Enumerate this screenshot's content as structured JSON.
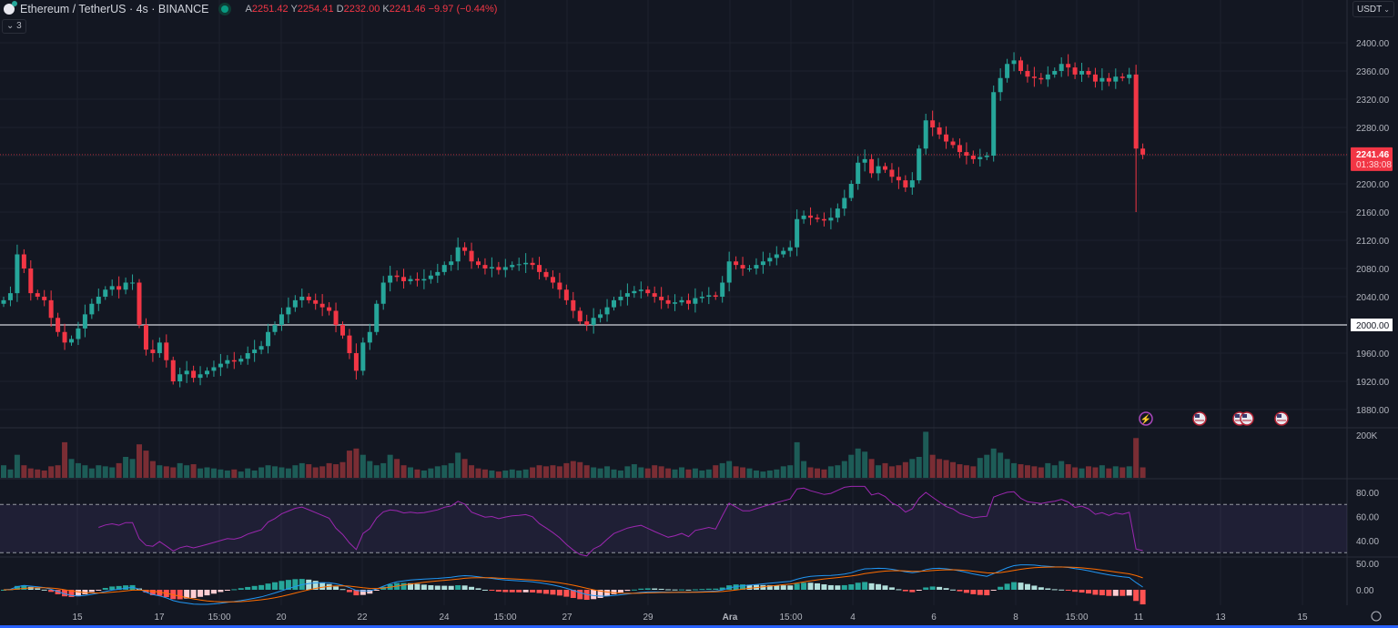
{
  "header": {
    "title": "Ethereum / TetherUS · 4s · BINANCE",
    "open_label": "A",
    "open": "2251.42",
    "high_label": "Y",
    "high": "2254.41",
    "low_label": "D",
    "low": "2232.00",
    "close_label": "K",
    "close": "2241.46",
    "change": "−9.97 (−0.44%)",
    "collapse_label": "3"
  },
  "currency_select": "USDT",
  "price_badge": {
    "price": "2241.46",
    "countdown": "01:38:08",
    "color": "#f23645"
  },
  "level_badge": "2000.00",
  "colors": {
    "up": "#26a69a",
    "down": "#f23645",
    "rsi": "#9c27b0",
    "macd": "#2196f3",
    "signal": "#ff6d00",
    "background": "#131722"
  },
  "events": [
    {
      "icon": "lightning-icon"
    },
    {
      "icon": "us-flag-icon"
    },
    {
      "icon": "us-flag-icon"
    },
    {
      "icon": "us-flag-icon"
    },
    {
      "icon": "us-flag-icon"
    }
  ],
  "chart_data": {
    "type": "candlestick",
    "price_axis_ticks": [
      "2400.00",
      "2360.00",
      "2320.00",
      "2280.00",
      "2200.00",
      "2160.00",
      "2120.00",
      "2080.00",
      "2040.00",
      "1960.00",
      "1920.00",
      "1880.00"
    ],
    "ylim": [
      1880,
      2400
    ],
    "horizontal_line": 2000,
    "last_price": 2241.46,
    "time_axis_ticks": [
      "15",
      "17",
      "15:00",
      "20",
      "22",
      "24",
      "15:00",
      "27",
      "29",
      "Ara",
      "15:00",
      "4",
      "6",
      "8",
      "15:00",
      "11",
      "13",
      "15"
    ],
    "close": [
      2035,
      2045,
      2100,
      2080,
      2045,
      2040,
      2035,
      2010,
      1990,
      1975,
      1980,
      1995,
      2015,
      2030,
      2040,
      2050,
      2055,
      2050,
      2060,
      2060,
      2000,
      1965,
      1960,
      1975,
      1950,
      1920,
      1930,
      1935,
      1925,
      1930,
      1935,
      1940,
      1945,
      1950,
      1948,
      1952,
      1960,
      1965,
      1970,
      1990,
      2000,
      2015,
      2025,
      2035,
      2040,
      2035,
      2030,
      2025,
      2020,
      2000,
      1985,
      1960,
      1935,
      1975,
      1990,
      2030,
      2060,
      2070,
      2068,
      2062,
      2065,
      2063,
      2065,
      2070,
      2075,
      2085,
      2090,
      2110,
      2105,
      2090,
      2085,
      2080,
      2082,
      2078,
      2082,
      2085,
      2086,
      2088,
      2085,
      2075,
      2068,
      2060,
      2050,
      2035,
      2020,
      2005,
      2000,
      2010,
      2015,
      2025,
      2035,
      2040,
      2045,
      2048,
      2050,
      2045,
      2040,
      2035,
      2030,
      2032,
      2035,
      2030,
      2038,
      2040,
      2042,
      2040,
      2060,
      2090,
      2085,
      2080,
      2080,
      2085,
      2090,
      2095,
      2100,
      2105,
      2110,
      2150,
      2155,
      2152,
      2150,
      2148,
      2152,
      2165,
      2180,
      2200,
      2230,
      2235,
      2215,
      2225,
      2220,
      2210,
      2205,
      2195,
      2205,
      2250,
      2290,
      2280,
      2270,
      2260,
      2255,
      2245,
      2240,
      2235,
      2238,
      2240,
      2330,
      2350,
      2370,
      2375,
      2360,
      2352,
      2350,
      2348,
      2355,
      2360,
      2370,
      2365,
      2355,
      2360,
      2355,
      2345,
      2350,
      2345,
      2352,
      2350,
      2355,
      2250,
      2241.46
    ],
    "volume": {
      "axis_tick": "200K",
      "values_k": [
        60,
        40,
        110,
        60,
        45,
        40,
        35,
        55,
        60,
        170,
        90,
        70,
        60,
        45,
        60,
        55,
        50,
        70,
        100,
        90,
        160,
        130,
        80,
        60,
        55,
        50,
        70,
        60,
        65,
        45,
        50,
        45,
        40,
        35,
        40,
        30,
        45,
        35,
        50,
        60,
        55,
        50,
        45,
        60,
        70,
        65,
        50,
        55,
        70,
        65,
        75,
        130,
        140,
        110,
        80,
        60,
        70,
        110,
        90,
        60,
        50,
        40,
        35,
        45,
        55,
        60,
        70,
        120,
        90,
        60,
        45,
        40,
        35,
        30,
        35,
        40,
        35,
        40,
        50,
        60,
        55,
        60,
        55,
        70,
        80,
        75,
        60,
        50,
        45,
        55,
        40,
        35,
        55,
        65,
        50,
        45,
        60,
        55,
        45,
        40,
        50,
        40,
        45,
        35,
        40,
        60,
        70,
        80,
        55,
        50,
        45,
        35,
        30,
        35,
        40,
        55,
        60,
        170,
        80,
        50,
        45,
        40,
        55,
        60,
        80,
        110,
        140,
        125,
        90,
        60,
        70,
        55,
        60,
        75,
        90,
        100,
        220,
        110,
        90,
        85,
        75,
        65,
        60,
        55,
        95,
        110,
        140,
        120,
        90,
        70,
        65,
        60,
        55,
        50,
        70,
        60,
        80,
        65,
        50,
        45,
        55,
        50,
        60,
        45,
        55,
        50,
        55,
        190,
        50
      ]
    },
    "rsi": {
      "axis_ticks": [
        "80.00",
        "60.00",
        "40.00"
      ],
      "band": [
        30,
        70
      ],
      "ylim": [
        25,
        85
      ]
    },
    "macd": {
      "axis_ticks": [
        "50.00",
        "0.00"
      ]
    }
  }
}
